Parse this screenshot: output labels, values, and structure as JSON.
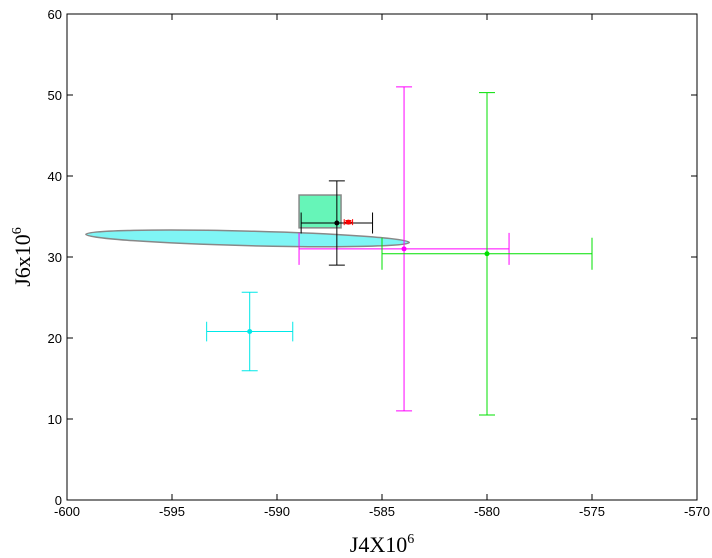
{
  "chart_data": {
    "type": "errorbar",
    "xlabel": {
      "base": "J4X10",
      "sup": "6"
    },
    "ylabel": {
      "base": "J6x10",
      "sup": "6"
    },
    "xlim": [
      -600,
      -570
    ],
    "xticks": [
      -600,
      -595,
      -590,
      -585,
      -580,
      -575,
      -570
    ],
    "ylim": [
      0,
      60
    ],
    "yticks": [
      0,
      10,
      20,
      30,
      40,
      50,
      60
    ],
    "series": [
      {
        "color": "#00e8e8",
        "x": -591.3,
        "y": 20.8,
        "xerr": 2.05,
        "yerr": 4.85
      },
      {
        "color": "#ff00ff",
        "x": -583.95,
        "y": 31.0,
        "xerr": 5.0,
        "yerr": 20.0
      },
      {
        "color": "#00e000",
        "x": -580.0,
        "y": 30.4,
        "xerr": 5.0,
        "yerr": 19.9
      },
      {
        "color": "#000000",
        "x": -587.15,
        "y": 34.2,
        "xerr": 1.7,
        "yerr": 5.2
      },
      {
        "color": "#ff0000",
        "x": -586.6,
        "y": 34.3,
        "xerr": 0.2,
        "yerr": 0.2
      }
    ],
    "rectangle": {
      "color": "#66f5b8",
      "x": [
        -588.95,
        -586.95
      ],
      "y": [
        33.6,
        37.65
      ]
    },
    "ellipse": {
      "color": "#7ff5f5",
      "x": [
        -599.1,
        -583.7
      ],
      "y": [
        32.8,
        31.8
      ],
      "height": 1.8
    }
  }
}
